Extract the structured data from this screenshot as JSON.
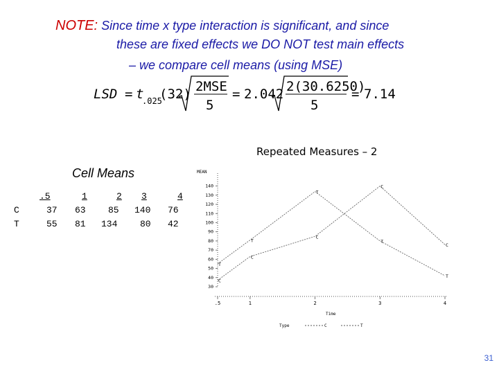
{
  "note": {
    "label": "NOTE:",
    "line1": "Since time x type interaction is significant, and since",
    "line2": "these are fixed effects we DO NOT test main effects",
    "line3": "– we compare cell means  (using MSE)"
  },
  "formula": {
    "lhs": "LSD",
    "t": "t",
    "t_sub": ".025",
    "df": "(32)",
    "num1": "2MSE",
    "den1": "5",
    "val1": "2.042",
    "num2": "2(30.6250)",
    "den2": "5",
    "result": "7.147"
  },
  "cell_means": {
    "title": "Cell Means",
    "headers": [
      ".5",
      "1",
      "2",
      "3",
      "4"
    ],
    "rows": [
      {
        "label": "C",
        "values": [
          "37",
          "63",
          "85",
          "140",
          "76"
        ]
      },
      {
        "label": "T",
        "values": [
          "55",
          "81",
          "134",
          "80",
          "42"
        ]
      }
    ]
  },
  "plot": {
    "title": "Repeated Measures  –  2",
    "ylabel": "MEAN",
    "xlabel": "Time",
    "legend_label": "Type",
    "legend_c": "C",
    "legend_t": "T"
  },
  "chart_data": {
    "type": "line",
    "title": "Repeated Measures  –  2",
    "x": [
      ".5",
      "1",
      "2",
      "3",
      "4"
    ],
    "y_ticks": [
      30,
      40,
      50,
      60,
      70,
      80,
      90,
      100,
      110,
      120,
      130,
      140
    ],
    "ylim": [
      30,
      145
    ],
    "series": [
      {
        "name": "C",
        "values": [
          37,
          63,
          85,
          140,
          76
        ]
      },
      {
        "name": "T",
        "values": [
          55,
          81,
          134,
          80,
          42
        ]
      }
    ]
  },
  "slide_number": "31"
}
